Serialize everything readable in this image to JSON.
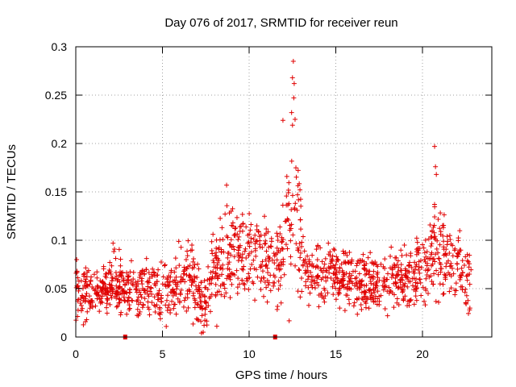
{
  "chart_data": {
    "type": "scatter",
    "title": "Day 076 of 2017, SRMTID for receiver reun",
    "xlabel": "GPS time / hours",
    "ylabel": "SRMTID / TECUs",
    "xlim": [
      0,
      24
    ],
    "ylim": [
      0,
      0.3
    ],
    "xticks": [
      0,
      5,
      10,
      15,
      20
    ],
    "xtick_labels": [
      "0",
      "5",
      "10",
      "15",
      "20"
    ],
    "yticks": [
      0,
      0.05,
      0.1,
      0.15,
      0.2,
      0.25,
      0.3
    ],
    "ytick_labels": [
      "0",
      "0.05",
      "0.1",
      "0.15",
      "0.2",
      "0.25",
      "0.3"
    ],
    "grid": true,
    "marker": "+",
    "color": "#e00000",
    "series_profile": {
      "name": "SRMTID",
      "x": [
        0.0,
        0.5,
        1.0,
        1.5,
        2.0,
        2.2,
        2.5,
        3.0,
        3.5,
        4.0,
        4.5,
        5.0,
        5.5,
        6.0,
        6.5,
        7.0,
        7.3,
        7.6,
        8.0,
        8.5,
        9.0,
        9.5,
        10.0,
        10.5,
        11.0,
        11.5,
        12.0,
        12.3,
        12.6,
        12.9,
        13.3,
        14.0,
        15.0,
        16.0,
        17.0,
        18.0,
        19.0,
        19.5,
        20.0,
        20.5,
        20.7,
        21.0,
        21.5,
        22.0,
        22.5,
        22.8
      ],
      "median": [
        0.045,
        0.042,
        0.045,
        0.048,
        0.055,
        0.062,
        0.05,
        0.045,
        0.052,
        0.05,
        0.048,
        0.05,
        0.05,
        0.055,
        0.065,
        0.045,
        0.03,
        0.05,
        0.07,
        0.085,
        0.09,
        0.088,
        0.085,
        0.08,
        0.075,
        0.08,
        0.095,
        0.12,
        0.14,
        0.11,
        0.07,
        0.065,
        0.062,
        0.06,
        0.055,
        0.058,
        0.06,
        0.065,
        0.07,
        0.085,
        0.1,
        0.09,
        0.08,
        0.07,
        0.06,
        0.05
      ],
      "spread": [
        0.018,
        0.018,
        0.018,
        0.018,
        0.02,
        0.022,
        0.02,
        0.018,
        0.02,
        0.02,
        0.02,
        0.02,
        0.02,
        0.022,
        0.025,
        0.022,
        0.02,
        0.025,
        0.03,
        0.035,
        0.035,
        0.03,
        0.03,
        0.03,
        0.03,
        0.032,
        0.04,
        0.05,
        0.06,
        0.05,
        0.02,
        0.02,
        0.02,
        0.02,
        0.02,
        0.02,
        0.02,
        0.022,
        0.025,
        0.03,
        0.04,
        0.035,
        0.03,
        0.025,
        0.02,
        0.02
      ]
    },
    "highlighted_points": [
      {
        "x": 12.55,
        "y": 0.285
      },
      {
        "x": 12.5,
        "y": 0.268
      },
      {
        "x": 12.6,
        "y": 0.262
      },
      {
        "x": 12.45,
        "y": 0.232
      },
      {
        "x": 12.65,
        "y": 0.225
      },
      {
        "x": 11.95,
        "y": 0.224
      },
      {
        "x": 20.7,
        "y": 0.197
      },
      {
        "x": 20.75,
        "y": 0.176
      },
      {
        "x": 20.8,
        "y": 0.168
      },
      {
        "x": 8.7,
        "y": 0.157
      },
      {
        "x": 0.05,
        "y": 0.08
      },
      {
        "x": 2.15,
        "y": 0.097
      },
      {
        "x": 7.35,
        "y": 0.005
      },
      {
        "x": 7.4,
        "y": 0.012
      }
    ],
    "gap_markers": [
      {
        "x": 2.85,
        "y": 0
      },
      {
        "x": 11.5,
        "y": 0
      }
    ],
    "point_count": 1500
  }
}
